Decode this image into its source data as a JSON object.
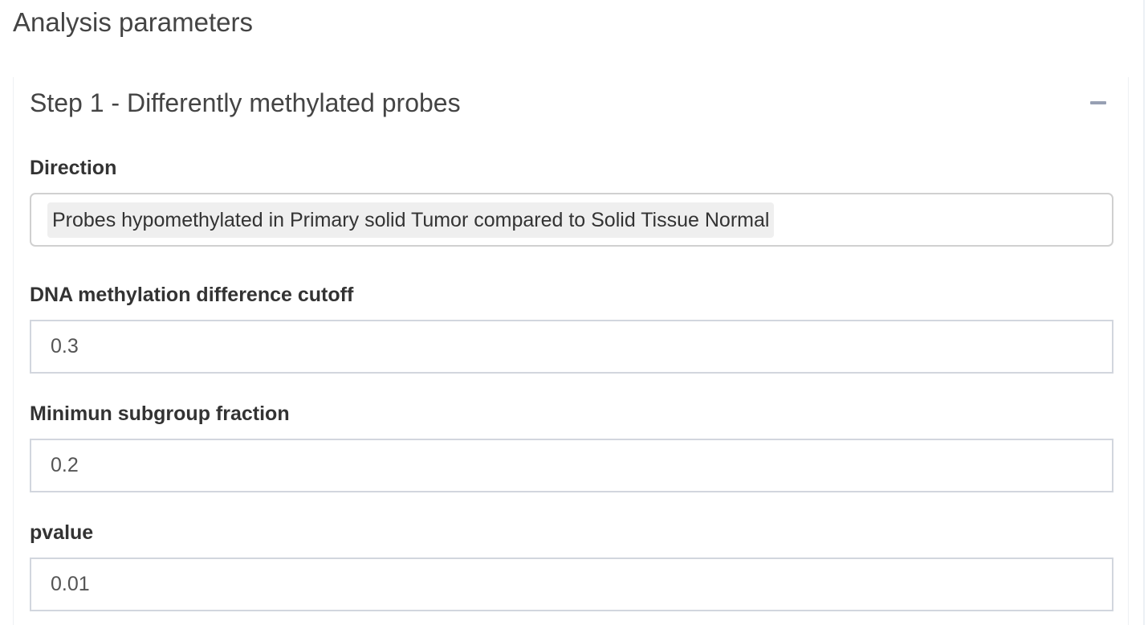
{
  "page": {
    "title": "Analysis parameters"
  },
  "step1": {
    "title": "Step 1 - Differently methylated probes",
    "collapse_icon": "minus-icon",
    "direction": {
      "label": "Direction",
      "selected": "Probes hypomethylated in Primary solid Tumor compared to Solid Tissue Normal"
    },
    "diff_cutoff": {
      "label": "DNA methylation difference cutoff",
      "value": "0.3"
    },
    "min_subgroup": {
      "label": "Minimun subgroup fraction",
      "value": "0.2"
    },
    "pvalue": {
      "label": "pvalue",
      "value": "0.01"
    }
  },
  "colors": {
    "accent_border": "#d2d6de",
    "tag_background": "#efefef",
    "collapse_icon": "#97a0b3"
  }
}
